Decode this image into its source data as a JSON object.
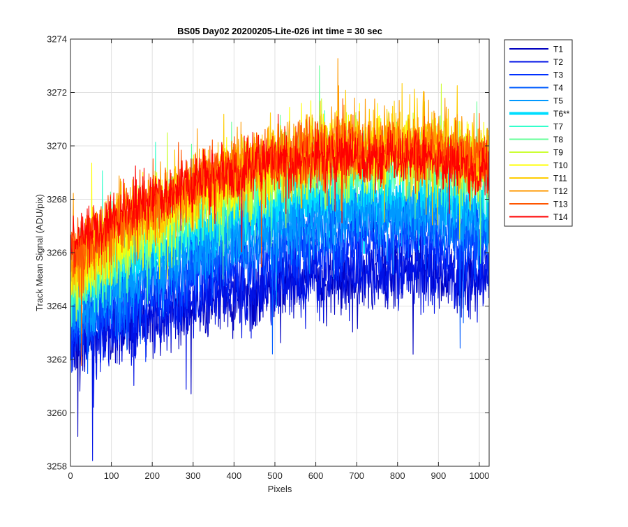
{
  "chart_data": {
    "type": "line",
    "title": "BS05 Day02 20200205-Lite-026 int time = 30 sec",
    "xlabel": "Pixels",
    "ylabel": "Track Mean Signal (ADU/pix)",
    "xlim": [
      0,
      1024
    ],
    "ylim": [
      3258,
      3274
    ],
    "xticks": [
      0,
      100,
      200,
      300,
      400,
      500,
      600,
      700,
      800,
      900,
      1000
    ],
    "yticks": [
      3258,
      3260,
      3262,
      3264,
      3266,
      3268,
      3270,
      3272,
      3274
    ],
    "grid": true,
    "legend_position": "outside-right",
    "n_points": 1024,
    "series": [
      {
        "name": "T1",
        "color": "#0000bf",
        "thick": false,
        "base": [
          3262.5,
          3263.4,
          3264.2,
          3264.8,
          3265.1,
          3265.2,
          3264.9
        ],
        "noise": 1.1
      },
      {
        "name": "T2",
        "color": "#0012e6",
        "thick": false,
        "base": [
          3262.6,
          3263.5,
          3264.3,
          3264.9,
          3265.2,
          3265.3,
          3265.0
        ],
        "noise": 1.1
      },
      {
        "name": "T3",
        "color": "#0030ff",
        "thick": false,
        "base": [
          3263.0,
          3264.2,
          3265.2,
          3265.9,
          3266.3,
          3266.4,
          3266.1
        ],
        "noise": 1.0
      },
      {
        "name": "T4",
        "color": "#005cff",
        "thick": false,
        "base": [
          3263.3,
          3264.7,
          3265.8,
          3266.5,
          3266.9,
          3267.0,
          3266.7
        ],
        "noise": 1.0
      },
      {
        "name": "T5",
        "color": "#0099ff",
        "thick": false,
        "base": [
          3263.6,
          3265.1,
          3266.3,
          3267.0,
          3267.4,
          3267.5,
          3267.2
        ],
        "noise": 1.0
      },
      {
        "name": "T6**",
        "color": "#00ddff",
        "thick": true,
        "base": [
          3264.0,
          3265.6,
          3266.8,
          3267.5,
          3267.9,
          3268.0,
          3267.6
        ],
        "noise": 1.0
      },
      {
        "name": "T7",
        "color": "#33ffcc",
        "thick": false,
        "base": [
          3264.6,
          3266.4,
          3267.8,
          3268.7,
          3269.2,
          3269.3,
          3268.9
        ],
        "noise": 1.1
      },
      {
        "name": "T8",
        "color": "#66ff99",
        "thick": false,
        "base": [
          3264.8,
          3266.6,
          3268.0,
          3268.9,
          3269.4,
          3269.5,
          3269.1
        ],
        "noise": 1.1
      },
      {
        "name": "T9",
        "color": "#ccff33",
        "thick": false,
        "base": [
          3265.0,
          3266.8,
          3268.2,
          3269.1,
          3269.6,
          3269.7,
          3269.3
        ],
        "noise": 1.1
      },
      {
        "name": "T10",
        "color": "#ffff00",
        "thick": false,
        "base": [
          3265.2,
          3267.0,
          3268.4,
          3269.3,
          3269.8,
          3269.9,
          3269.5
        ],
        "noise": 1.1
      },
      {
        "name": "T11",
        "color": "#ffcc00",
        "thick": false,
        "base": [
          3265.5,
          3267.3,
          3268.7,
          3269.6,
          3270.0,
          3270.1,
          3269.6
        ],
        "noise": 1.1
      },
      {
        "name": "T12",
        "color": "#ff9900",
        "thick": false,
        "base": [
          3265.8,
          3267.5,
          3268.8,
          3269.6,
          3270.0,
          3270.0,
          3269.5
        ],
        "noise": 1.1
      },
      {
        "name": "T13",
        "color": "#ff5500",
        "thick": false,
        "base": [
          3266.0,
          3267.6,
          3268.9,
          3269.6,
          3269.9,
          3269.9,
          3269.3
        ],
        "noise": 1.0
      },
      {
        "name": "T14",
        "color": "#ff0000",
        "thick": false,
        "base": [
          3266.3,
          3267.8,
          3268.8,
          3269.4,
          3269.6,
          3269.6,
          3268.9
        ],
        "noise": 0.9
      }
    ]
  }
}
